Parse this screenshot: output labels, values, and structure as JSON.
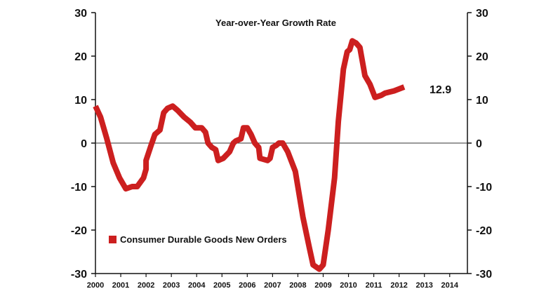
{
  "chart_data": {
    "type": "line",
    "title": "Year-over-Year Growth Rate",
    "xlabel": "",
    "ylabel": "",
    "x_ticks": [
      "2000",
      "2001",
      "2002",
      "2003",
      "2004",
      "2005",
      "2006",
      "2007",
      "2008",
      "2009",
      "2010",
      "2011",
      "2012",
      "2013",
      "2014"
    ],
    "xlim": [
      2000,
      2014.7
    ],
    "ylim": [
      -30,
      30
    ],
    "y_ticks": [
      30,
      20,
      10,
      0,
      -10,
      -20,
      -30
    ],
    "zero_line": true,
    "grid": false,
    "legend_position": "bottom-left",
    "series": [
      {
        "name": "Consumer Durable Goods New Orders",
        "color": "#cc1f1f",
        "end_label": "12.9",
        "points": [
          [
            2000.0,
            8.5
          ],
          [
            2000.2,
            6.0
          ],
          [
            2000.45,
            1.0
          ],
          [
            2000.7,
            -4.5
          ],
          [
            2000.95,
            -8.0
          ],
          [
            2001.2,
            -10.5
          ],
          [
            2001.45,
            -10.0
          ],
          [
            2001.65,
            -10.0
          ],
          [
            2001.9,
            -8.0
          ],
          [
            2002.0,
            -6.0
          ],
          [
            2002.0,
            -4.0
          ],
          [
            2002.2,
            -0.5
          ],
          [
            2002.35,
            2.0
          ],
          [
            2002.55,
            3.0
          ],
          [
            2002.7,
            7.0
          ],
          [
            2002.85,
            8.0
          ],
          [
            2003.05,
            8.5
          ],
          [
            2003.25,
            7.5
          ],
          [
            2003.5,
            6.0
          ],
          [
            2003.75,
            4.8
          ],
          [
            2003.95,
            3.5
          ],
          [
            2004.2,
            3.5
          ],
          [
            2004.35,
            2.5
          ],
          [
            2004.45,
            0.0
          ],
          [
            2004.6,
            -1.0
          ],
          [
            2004.75,
            -1.5
          ],
          [
            2004.85,
            -4.0
          ],
          [
            2005.05,
            -3.5
          ],
          [
            2005.3,
            -2.0
          ],
          [
            2005.45,
            0.0
          ],
          [
            2005.55,
            0.5
          ],
          [
            2005.75,
            1.0
          ],
          [
            2005.85,
            3.5
          ],
          [
            2006.0,
            3.5
          ],
          [
            2006.15,
            2.0
          ],
          [
            2006.3,
            0.0
          ],
          [
            2006.45,
            -1.0
          ],
          [
            2006.5,
            -3.5
          ],
          [
            2006.8,
            -4.0
          ],
          [
            2006.9,
            -3.5
          ],
          [
            2007.0,
            -1.0
          ],
          [
            2007.15,
            -0.5
          ],
          [
            2007.25,
            0.0
          ],
          [
            2007.4,
            0.0
          ],
          [
            2007.6,
            -2.0
          ],
          [
            2007.9,
            -6.5
          ],
          [
            2008.0,
            -10.0
          ],
          [
            2008.2,
            -17.0
          ],
          [
            2008.45,
            -24.0
          ],
          [
            2008.6,
            -28.0
          ],
          [
            2008.85,
            -29.0
          ],
          [
            2009.0,
            -28.0
          ],
          [
            2009.2,
            -20.0
          ],
          [
            2009.45,
            -8.0
          ],
          [
            2009.6,
            5.0
          ],
          [
            2009.8,
            17.0
          ],
          [
            2009.95,
            21.0
          ],
          [
            2010.05,
            21.5
          ],
          [
            2010.15,
            23.5
          ],
          [
            2010.3,
            23.0
          ],
          [
            2010.45,
            22.0
          ],
          [
            2010.65,
            15.5
          ],
          [
            2010.85,
            13.5
          ],
          [
            2011.05,
            10.5
          ],
          [
            2011.3,
            11.0
          ],
          [
            2011.45,
            11.5
          ],
          [
            2011.8,
            12.0
          ],
          [
            2012.2,
            12.9
          ]
        ]
      }
    ]
  }
}
